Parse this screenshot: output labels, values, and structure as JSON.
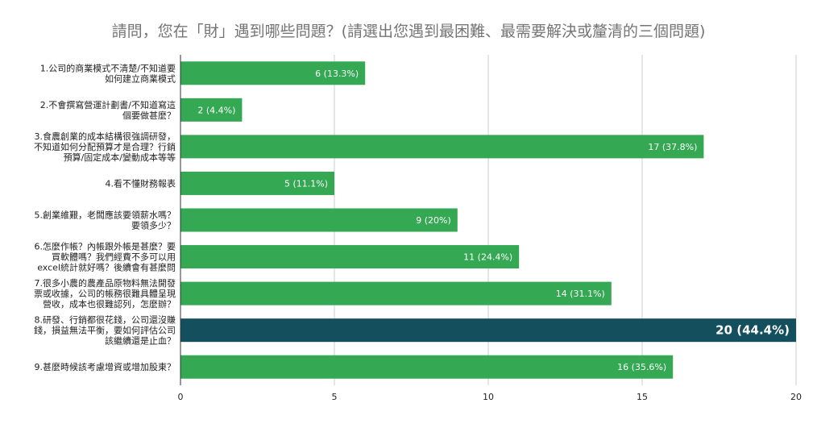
{
  "chart_data": {
    "type": "bar",
    "orientation": "horizontal",
    "title": "請問，您在「財」遇到哪些問題？(請選出您遇到最困難、最需要解決或釐清的三個問題)",
    "categories": [
      [
        "1.公司的商業模式不清楚/不知道要",
        "如何建立商業模式"
      ],
      [
        "2.不會撰寫營運計劃書/不知道寫這",
        "個要做甚麼？"
      ],
      [
        "3.食農創業的成本結構很強調研發，",
        "不知道如何分配預算才是合理？行銷",
        "預算/固定成本/變動成本等等"
      ],
      [
        "4.看不懂財務報表"
      ],
      [
        "5.創業維艱，老闆應該要領薪水嗎？",
        "要領多少？"
      ],
      [
        "6.怎麼作帳？內帳跟外帳是甚麼？要",
        "買軟體嗎？我們經費不多可以用",
        "excel統計就好嗎？後續會有甚麼問"
      ],
      [
        "7.很多小農的農產品原物料無法開發",
        "票或收據，公司的帳務很難具體呈現",
        "營收，成本也很難認列，怎麼辦？"
      ],
      [
        "8.研發、行銷都很花錢，公司還沒賺",
        "錢，損益無法平衡，要如何評估公司",
        "該繼續還是止血？"
      ],
      [
        "9.甚麼時候該考慮增資或增加股東？"
      ]
    ],
    "values": [
      6,
      2,
      17,
      5,
      9,
      11,
      14,
      20,
      16
    ],
    "data_labels": [
      "6 (13.3%)",
      "2 (4.4%)",
      "17  (37.8%)",
      "5 (11.1%)",
      "9 (20%)",
      "11 (24.4%)",
      "14 (31.1%)",
      "20 (44.4%)",
      "16 (35.6%)"
    ],
    "xlim": [
      0,
      20
    ],
    "xticks": [
      0,
      5,
      10,
      15,
      20
    ],
    "grid": true,
    "highlight_index": 7,
    "colors": {
      "bar": "#34a853",
      "highlight": "#134f5c",
      "grid": "#cccccc",
      "axis": "#333333"
    }
  }
}
